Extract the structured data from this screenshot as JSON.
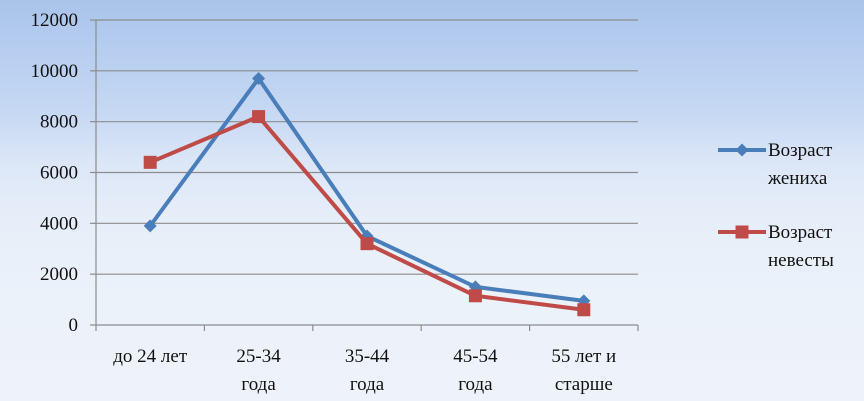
{
  "chart_data": {
    "type": "line",
    "categories": [
      [
        "до 24 лет"
      ],
      [
        "25-34",
        "года"
      ],
      [
        "35-44",
        "года"
      ],
      [
        "45-54",
        "года"
      ],
      [
        "55 лет и",
        "старше"
      ]
    ],
    "series": [
      {
        "name": [
          "Возраст",
          "жениха"
        ],
        "values": [
          3900,
          9700,
          3500,
          1500,
          950
        ],
        "marker": "diamond",
        "color": "#4a7ebb"
      },
      {
        "name": [
          "Возраст",
          "невесты"
        ],
        "values": [
          6400,
          8200,
          3200,
          1150,
          600
        ],
        "marker": "square",
        "color": "#be4b48"
      }
    ],
    "yticks": [
      0,
      2000,
      4000,
      6000,
      8000,
      10000,
      12000
    ],
    "ylim": [
      0,
      12000
    ],
    "grid": true,
    "legend": "right",
    "colors": {
      "grid": "#8c8c8c",
      "axis": "#8c8c8c"
    }
  }
}
